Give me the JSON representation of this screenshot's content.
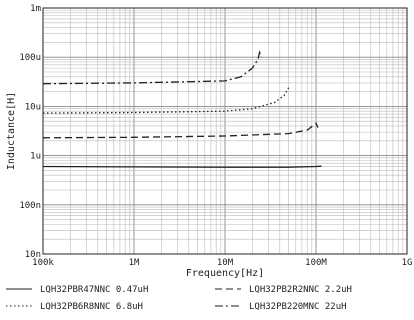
{
  "chart_data": {
    "type": "line",
    "title": "",
    "xlabel": "Frequency[Hz]",
    "ylabel": "Inductance[H]",
    "x_scale": "log",
    "y_scale": "log",
    "xlim": [
      100000,
      1000000000
    ],
    "ylim": [
      1e-08,
      0.001
    ],
    "grid": true,
    "x_ticks": [
      {
        "value": 100000,
        "label": "100k"
      },
      {
        "value": 1000000,
        "label": "1M"
      },
      {
        "value": 10000000,
        "label": "10M"
      },
      {
        "value": 100000000,
        "label": "100M"
      },
      {
        "value": 1000000000,
        "label": "1G"
      }
    ],
    "y_ticks": [
      {
        "value": 0.001,
        "label": "1m"
      },
      {
        "value": 0.0001,
        "label": "100u"
      },
      {
        "value": 1e-05,
        "label": "10u"
      },
      {
        "value": 1e-06,
        "label": "1u"
      },
      {
        "value": 1e-07,
        "label": "100n"
      },
      {
        "value": 1e-08,
        "label": "10n"
      }
    ],
    "series": [
      {
        "name": "LQH32PBR47NNC 0.47uH",
        "dash": "solid",
        "points": [
          [
            100000,
            6e-07
          ],
          [
            1000000,
            5.9e-07
          ],
          [
            10000000,
            5.8e-07
          ],
          [
            50000000,
            5.8e-07
          ],
          [
            100000000,
            6e-07
          ],
          [
            115000000,
            6.1e-07
          ]
        ]
      },
      {
        "name": "LQH32PB2R2NNC 2.2uH",
        "dash": "long-dash",
        "points": [
          [
            100000,
            2.3e-06
          ],
          [
            1000000,
            2.35e-06
          ],
          [
            10000000,
            2.5e-06
          ],
          [
            50000000,
            2.8e-06
          ],
          [
            80000000,
            3.3e-06
          ],
          [
            95000000,
            4.2e-06
          ],
          [
            100000000,
            4.6e-06
          ],
          [
            105000000,
            3.7e-06
          ]
        ]
      },
      {
        "name": "LQH32PB6R8NNC 6.8uH",
        "dash": "dotted",
        "points": [
          [
            100000,
            7.3e-06
          ],
          [
            1000000,
            7.5e-06
          ],
          [
            10000000,
            8e-06
          ],
          [
            20000000,
            9e-06
          ],
          [
            35000000,
            1.2e-05
          ],
          [
            45000000,
            1.7e-05
          ],
          [
            50000000,
            2.4e-05
          ]
        ]
      },
      {
        "name": "LQH32PB220MNC 22uH",
        "dash": "dash-dot",
        "points": [
          [
            100000,
            2.9e-05
          ],
          [
            1000000,
            3e-05
          ],
          [
            10000000,
            3.3e-05
          ],
          [
            15000000,
            4e-05
          ],
          [
            20000000,
            6e-05
          ],
          [
            23000000,
            9e-05
          ],
          [
            24000000,
            0.000125
          ],
          [
            25000000,
            0.0001
          ]
        ]
      }
    ]
  }
}
